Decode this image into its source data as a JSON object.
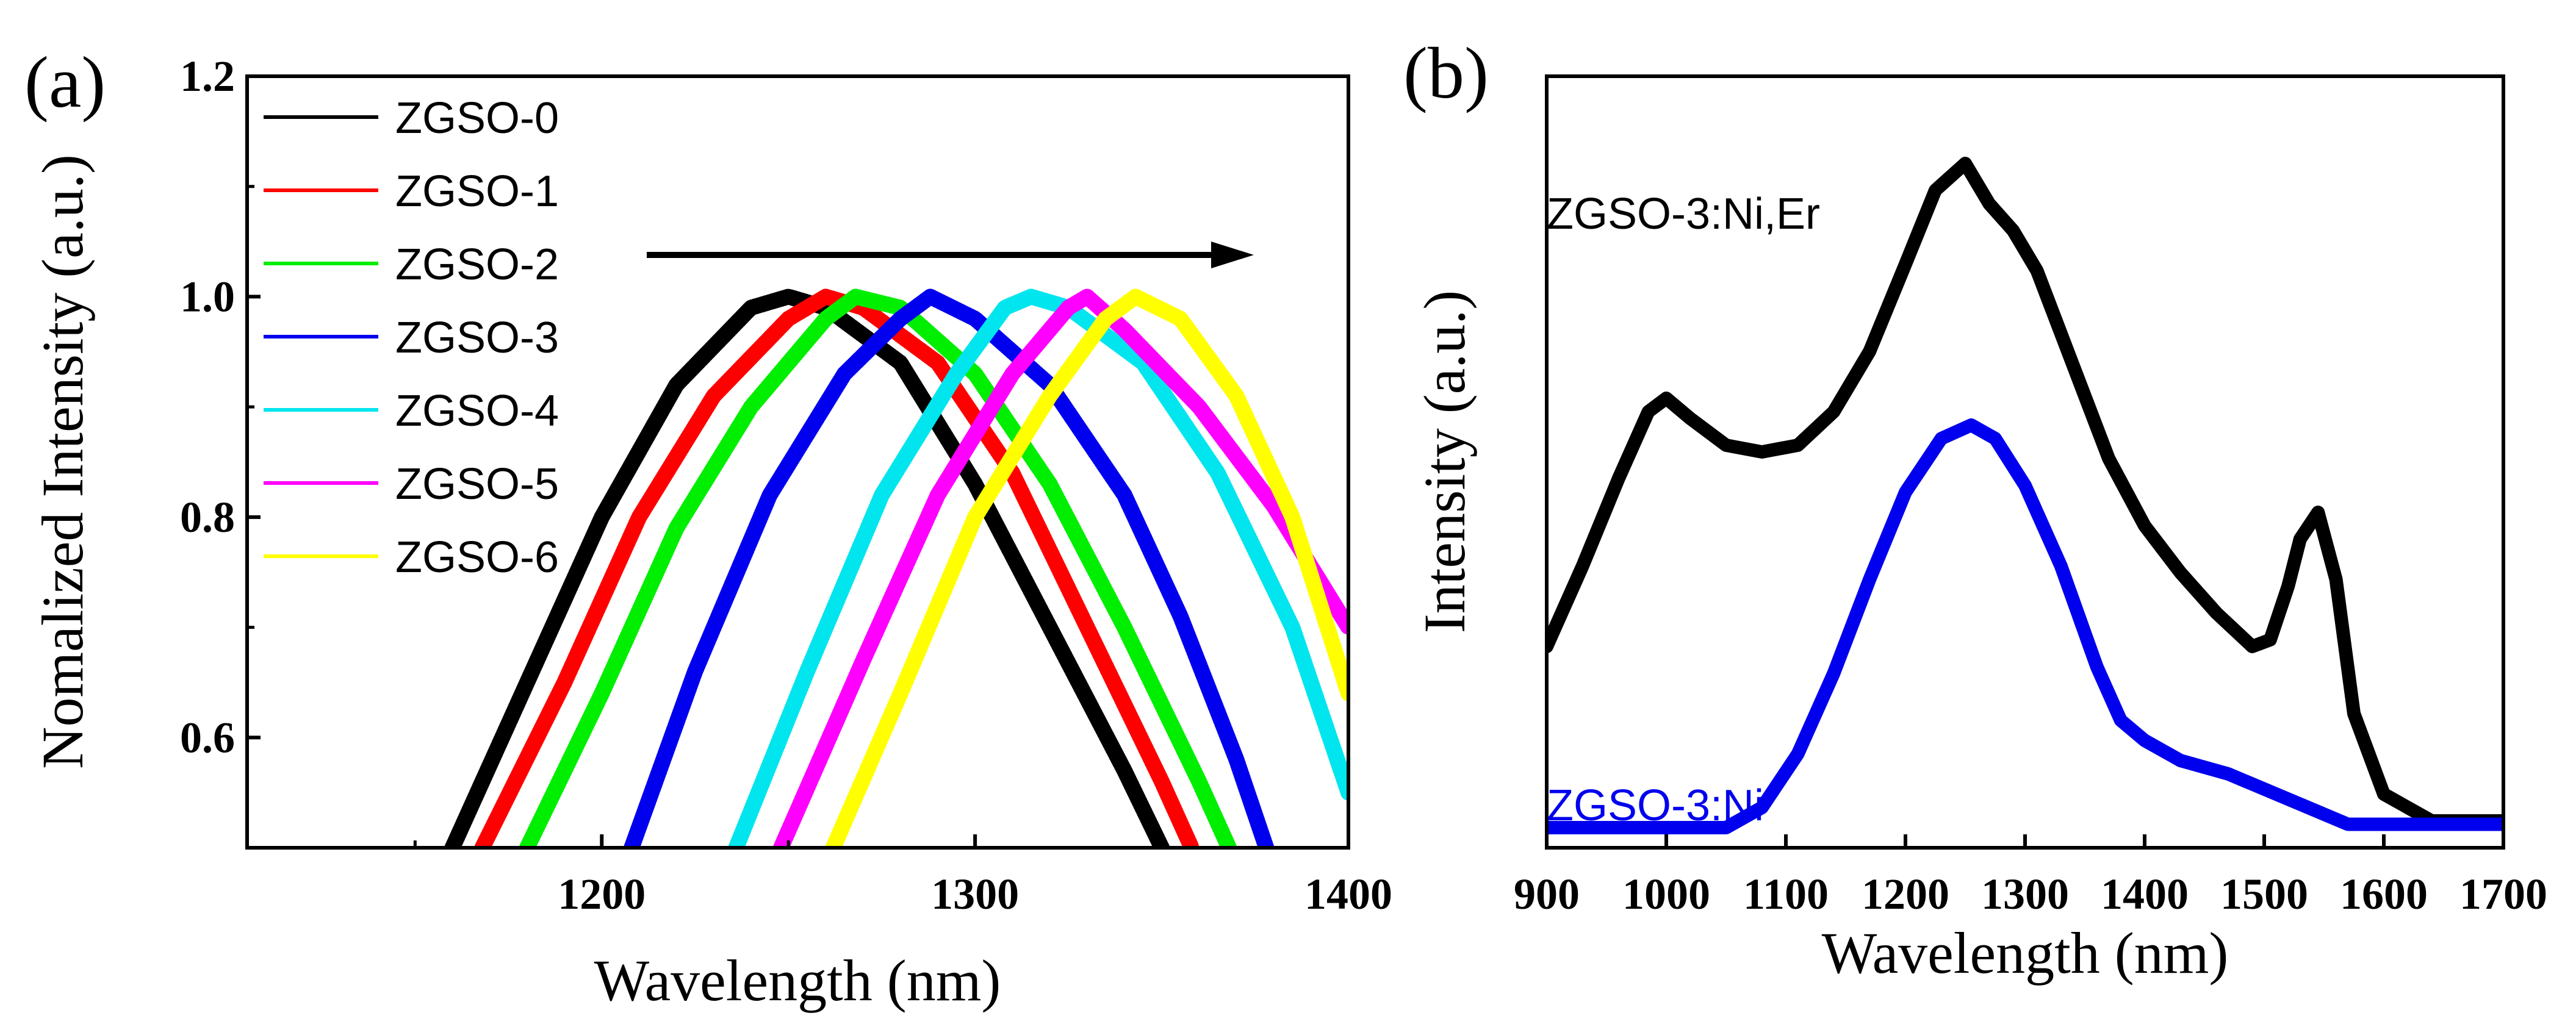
{
  "chart_data": [
    {
      "panel_label": "(a)",
      "type": "line",
      "xlabel": "Wavelength (nm)",
      "ylabel": "Nomalized Intensity (a.u.)",
      "xlim": [
        1105,
        1400
      ],
      "ylim": [
        0.5,
        1.2
      ],
      "xticks": [
        {
          "value": 1200,
          "label": "1200"
        },
        {
          "value": 1300,
          "label": "1300"
        },
        {
          "value": 1400,
          "label": "1400"
        }
      ],
      "yticks": [
        {
          "value": 0.6,
          "label": "0.6"
        },
        {
          "value": 0.8,
          "label": "0.8"
        },
        {
          "value": 1.0,
          "label": "1.0"
        },
        {
          "value": 1.2,
          "label": "1.2"
        }
      ],
      "grid": false,
      "legend_position": "top-left",
      "annotation": {
        "type": "arrow",
        "from": [
          1215,
          1.035
        ],
        "to": [
          1380,
          1.035
        ],
        "meaning": "red-shift with increasing index"
      },
      "series": [
        {
          "name": "ZGSO-0",
          "color": "#000000",
          "peak": 1250,
          "x": [
            1160,
            1180,
            1200,
            1220,
            1240,
            1250,
            1260,
            1280,
            1300,
            1320,
            1340,
            1350
          ],
          "y": [
            0.5,
            0.65,
            0.8,
            0.92,
            0.99,
            1.0,
            0.99,
            0.94,
            0.83,
            0.7,
            0.57,
            0.5
          ]
        },
        {
          "name": "ZGSO-1",
          "color": "#ff0000",
          "peak": 1260,
          "x": [
            1168,
            1190,
            1210,
            1230,
            1250,
            1260,
            1270,
            1290,
            1310,
            1330,
            1350,
            1358
          ],
          "y": [
            0.5,
            0.65,
            0.8,
            0.91,
            0.98,
            1.0,
            0.99,
            0.94,
            0.84,
            0.7,
            0.56,
            0.5
          ]
        },
        {
          "name": "ZGSO-2",
          "color": "#00ee00",
          "peak": 1268,
          "x": [
            1180,
            1200,
            1220,
            1240,
            1260,
            1268,
            1280,
            1300,
            1320,
            1340,
            1360,
            1368
          ],
          "y": [
            0.5,
            0.64,
            0.79,
            0.9,
            0.98,
            1.0,
            0.99,
            0.93,
            0.83,
            0.7,
            0.56,
            0.5
          ]
        },
        {
          "name": "ZGSO-3",
          "color": "#0000ee",
          "peak": 1288,
          "x": [
            1208,
            1225,
            1245,
            1265,
            1280,
            1288,
            1300,
            1320,
            1340,
            1355,
            1370,
            1378
          ],
          "y": [
            0.5,
            0.66,
            0.82,
            0.93,
            0.98,
            1.0,
            0.98,
            0.92,
            0.82,
            0.71,
            0.58,
            0.5
          ]
        },
        {
          "name": "ZGSO-4",
          "color": "#00e5ee",
          "peak": 1315,
          "x": [
            1236,
            1255,
            1275,
            1295,
            1308,
            1315,
            1325,
            1345,
            1365,
            1385,
            1400
          ],
          "y": [
            0.5,
            0.66,
            0.82,
            0.93,
            0.99,
            1.0,
            0.99,
            0.94,
            0.84,
            0.7,
            0.55
          ]
        },
        {
          "name": "ZGSO-5",
          "color": "#ff00ff",
          "peak": 1330,
          "x": [
            1248,
            1270,
            1290,
            1310,
            1325,
            1330,
            1340,
            1360,
            1380,
            1400
          ],
          "y": [
            0.5,
            0.67,
            0.82,
            0.93,
            0.99,
            1.0,
            0.97,
            0.9,
            0.81,
            0.7
          ]
        },
        {
          "name": "ZGSO-6",
          "color": "#ffff00",
          "peak": 1343,
          "x": [
            1262,
            1280,
            1300,
            1320,
            1335,
            1343,
            1355,
            1370,
            1385,
            1400
          ],
          "y": [
            0.5,
            0.64,
            0.8,
            0.91,
            0.98,
            1.0,
            0.98,
            0.91,
            0.8,
            0.64
          ]
        }
      ]
    },
    {
      "panel_label": "(b)",
      "type": "line",
      "xlabel": "Wavelength (nm)",
      "ylabel": "Intensity (a.u.)",
      "xlim": [
        900,
        1700
      ],
      "ylim": [
        0,
        1.15
      ],
      "xticks": [
        {
          "value": 900,
          "label": "900"
        },
        {
          "value": 1000,
          "label": "1000"
        },
        {
          "value": 1100,
          "label": "1100"
        },
        {
          "value": 1200,
          "label": "1200"
        },
        {
          "value": 1300,
          "label": "1300"
        },
        {
          "value": 1400,
          "label": "1400"
        },
        {
          "value": 1500,
          "label": "1500"
        },
        {
          "value": 1600,
          "label": "1600"
        },
        {
          "value": 1700,
          "label": "1700"
        }
      ],
      "yticks": [],
      "grid": false,
      "series": [
        {
          "name": "ZGSO-3:Ni,Er",
          "color": "#000000",
          "label_position": "upper-left",
          "x": [
            900,
            930,
            960,
            985,
            1000,
            1020,
            1050,
            1080,
            1110,
            1140,
            1170,
            1200,
            1225,
            1250,
            1270,
            1290,
            1310,
            1340,
            1370,
            1400,
            1430,
            1460,
            1490,
            1505,
            1520,
            1530,
            1545,
            1560,
            1575,
            1600,
            1640,
            1700
          ],
          "y": [
            0.3,
            0.42,
            0.55,
            0.65,
            0.67,
            0.64,
            0.6,
            0.59,
            0.6,
            0.65,
            0.74,
            0.87,
            0.98,
            1.02,
            0.96,
            0.92,
            0.86,
            0.72,
            0.58,
            0.48,
            0.41,
            0.35,
            0.3,
            0.31,
            0.39,
            0.46,
            0.5,
            0.4,
            0.2,
            0.08,
            0.04,
            0.04
          ]
        },
        {
          "name": "ZGSO-3:Ni",
          "color": "#0000ee",
          "label_position": "lower-left",
          "x": [
            900,
            1000,
            1050,
            1080,
            1110,
            1140,
            1170,
            1200,
            1230,
            1255,
            1275,
            1300,
            1330,
            1360,
            1380,
            1400,
            1430,
            1470,
            1510,
            1550,
            1570,
            1600,
            1700
          ],
          "y": [
            0.03,
            0.03,
            0.03,
            0.06,
            0.14,
            0.26,
            0.4,
            0.53,
            0.61,
            0.63,
            0.61,
            0.54,
            0.42,
            0.27,
            0.19,
            0.16,
            0.13,
            0.11,
            0.08,
            0.05,
            0.035,
            0.035,
            0.035
          ]
        }
      ]
    }
  ]
}
